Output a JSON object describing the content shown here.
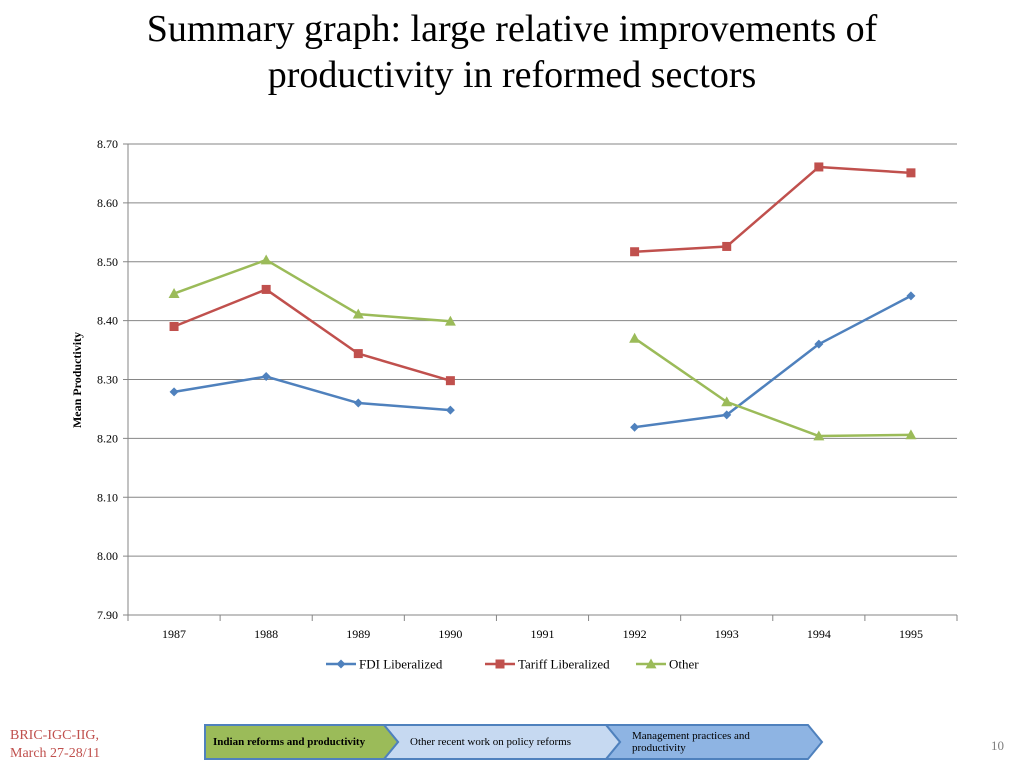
{
  "title_lines": [
    "Summary graph: large relative improvements of",
    "productivity in reformed sectors"
  ],
  "chart_data": {
    "type": "line",
    "title": "",
    "xlabel": "",
    "ylabel": "Mean Productivity",
    "categories": [
      "1987",
      "1988",
      "1989",
      "1990",
      "1991",
      "1992",
      "1993",
      "1994",
      "1995"
    ],
    "yticks": [
      "7.90",
      "8.00",
      "8.10",
      "8.20",
      "8.30",
      "8.40",
      "8.50",
      "8.60",
      "8.70"
    ],
    "ylim": [
      7.9,
      8.7
    ],
    "grid": "horizontal",
    "legend_position": "bottom",
    "series": [
      {
        "name": "FDI Liberalized",
        "color": "#4f81bd",
        "marker": "diamond",
        "values": [
          8.279,
          8.305,
          8.26,
          8.248,
          null,
          8.219,
          8.24,
          8.36,
          8.442
        ]
      },
      {
        "name": "Tariff Liberalized",
        "color": "#c0504d",
        "marker": "square",
        "values": [
          8.39,
          8.453,
          8.344,
          8.298,
          null,
          8.517,
          8.526,
          8.661,
          8.651
        ]
      },
      {
        "name": "Other",
        "color": "#9bbb59",
        "marker": "triangle",
        "values": [
          8.446,
          8.503,
          8.411,
          8.399,
          null,
          8.37,
          8.262,
          8.204,
          8.206
        ]
      }
    ]
  },
  "footer": {
    "left_lines": [
      "BRIC-IGC-IIG,",
      "March 27-28/11"
    ],
    "page_number": "10"
  },
  "nav": {
    "steps": [
      {
        "label": "Indian reforms and productivity",
        "active": true,
        "fill": "#9bbb59"
      },
      {
        "label": "Other recent work on policy reforms",
        "active": false,
        "fill": "#c6d9f1"
      },
      {
        "label": "Management practices and productivity",
        "active": false,
        "fill": "#8eb4e3"
      }
    ]
  }
}
